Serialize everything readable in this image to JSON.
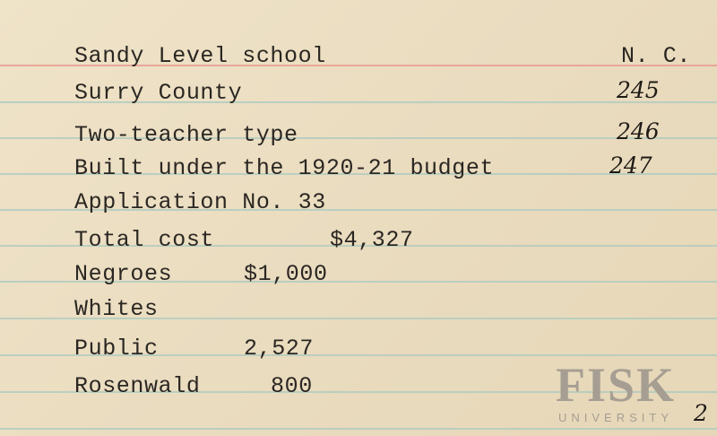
{
  "card": {
    "lines": [
      "Sandy Level school",
      "Surry County",
      "Two-teacher type",
      "Built under the 1920-21 budget",
      "Application No. 33"
    ],
    "state": "N. C.",
    "handwritten_numbers": [
      "245",
      "246",
      "247"
    ],
    "total_cost_label": "Total cost",
    "total_cost_value": "$4,327",
    "negroes_label": "Negroes",
    "negroes_value": "$1,000",
    "whites_label": "Whites",
    "public_label": "Public",
    "public_value": "2,527",
    "rosenwald_label": "Rosenwald",
    "rosenwald_value": "800",
    "corner_mark": "2"
  },
  "watermark": {
    "title": "FISK",
    "subtitle": "UNIVERSITY"
  }
}
